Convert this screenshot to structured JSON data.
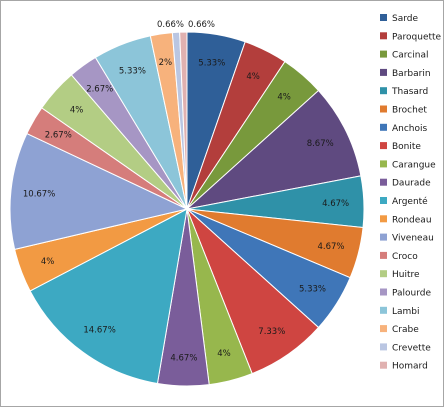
{
  "chart_data": {
    "type": "pie",
    "legend": "right",
    "categories": [
      "Sarde",
      "Paroquette",
      "Carcinal",
      "Barbarin",
      "Thasard",
      "Brochet",
      "Anchois",
      "Bonite",
      "Carangue",
      "Daurade",
      "Argenté",
      "Rondeau",
      "Viveneau",
      "Croco",
      "Huitre",
      "Palourde",
      "Lambi",
      "Crabe",
      "Crevette",
      "Homard"
    ],
    "values": [
      5.33,
      4,
      4,
      8.67,
      4.67,
      4.67,
      5.33,
      7.33,
      4,
      4.67,
      14.67,
      4,
      10.67,
      2.67,
      4,
      2.67,
      5.33,
      2,
      0.66,
      0.66
    ],
    "labels": [
      "5.33%",
      "4%",
      "4%",
      "8.67%",
      "4.67%",
      "4.67%",
      "5.33%",
      "7.33%",
      "4%",
      "4.67%",
      "14.67%",
      "4%",
      "10.67%",
      "2.67%",
      "4%",
      "2.67%",
      "5.33%",
      "2%",
      "0.66%",
      "0.66%"
    ],
    "colors": [
      "#2f5f98",
      "#b33e3c",
      "#78993c",
      "#5f4a80",
      "#2f91a8",
      "#e07b2f",
      "#3f76b8",
      "#cf4541",
      "#97b74d",
      "#7a5d9a",
      "#3da9c2",
      "#f29a43",
      "#8ea2d3",
      "#d57d7b",
      "#b3cd84",
      "#a696c4",
      "#8cc5d9",
      "#f7b27c",
      "#bac6e2",
      "#e0b1b0"
    ]
  }
}
